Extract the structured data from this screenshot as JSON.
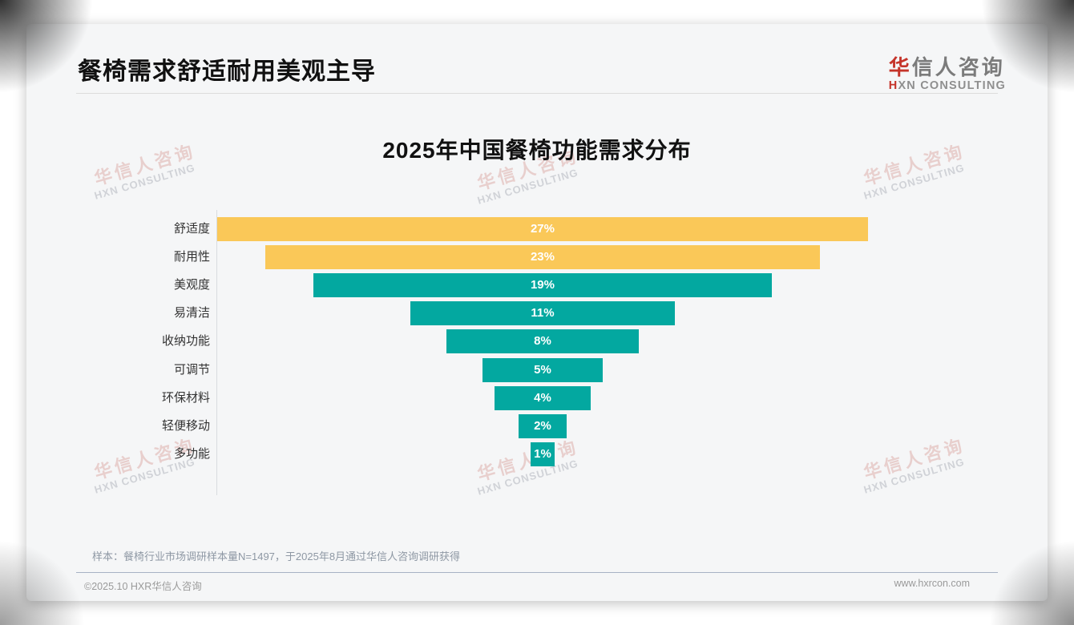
{
  "header": {
    "title": "餐椅需求舒适耐用美观主导",
    "logo": {
      "line1_accent": "华",
      "line1_rest": "信人咨询",
      "line2_accent": "H",
      "line2_rest": "XN CONSULTING"
    }
  },
  "chart_data": {
    "type": "bar",
    "variant": "centered-funnel",
    "title": "2025年中国餐椅功能需求分布",
    "categories": [
      "舒适度",
      "耐用性",
      "美观度",
      "易清洁",
      "收纳功能",
      "可调节",
      "环保材料",
      "轻便移动",
      "多功能"
    ],
    "values": [
      27,
      23,
      19,
      11,
      8,
      5,
      4,
      2,
      1
    ],
    "value_suffix": "%",
    "bar_colors": [
      "#FAC858",
      "#FAC858",
      "#03A8A0",
      "#03A8A0",
      "#03A8A0",
      "#03A8A0",
      "#03A8A0",
      "#03A8A0",
      "#03A8A0"
    ],
    "value_label_color": "#FFFFFF",
    "xlabel": "",
    "ylabel": "",
    "legend": "none",
    "grid": "off"
  },
  "watermark": {
    "line1": "华信人咨询",
    "line2": "HXN CONSULTING"
  },
  "footnote": {
    "text": "样本：餐椅行业市场调研样本量N=1497，于2025年8月通过华信人咨询调研获得"
  },
  "footer": {
    "left": "©2025.10 HXR华信人咨询",
    "right": "www.hxrcon.com"
  },
  "colors": {
    "accent_red": "#C5342A",
    "bar_yellow": "#FAC858",
    "bar_teal": "#03A8A0",
    "card_bg": "#F5F6F7"
  }
}
